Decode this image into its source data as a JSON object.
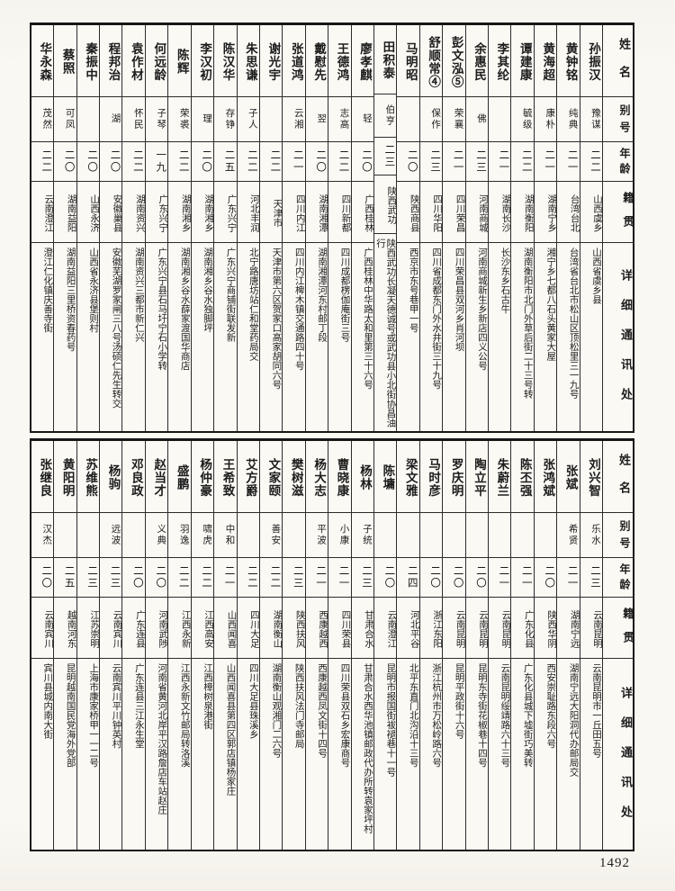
{
  "page": {
    "number": "1492"
  },
  "headers": {
    "name": "姓名",
    "courtesy": "别号",
    "age": "年龄",
    "origin": "籍贯",
    "address": "详细通讯处"
  },
  "tables": [
    {
      "people": [
        {
          "name": "孙振汉",
          "courtesy": "豫谋",
          "age": "二二",
          "origin": "山西虞乡",
          "address": "山西省虞乡县"
        },
        {
          "name": "黄钟铭",
          "courtesy": "纯典",
          "age": "二一",
          "origin": "台湾台北",
          "address": "台湾省台北市松山区顶松里三一九号"
        },
        {
          "name": "黄海超",
          "courtesy": "康朴",
          "age": "二一",
          "origin": "湖南宁乡",
          "address": "湘宁乡七都八石头黄家大屋"
        },
        {
          "name": "谭建康",
          "courtesy": "毓级",
          "age": "二二",
          "origin": "湖南衡阳",
          "address": "湖南衡阳市北门外草后街二十三号转"
        },
        {
          "name": "李其纶",
          "courtesy": "",
          "age": "二一",
          "origin": "湖南长沙",
          "address": "长沙东乡石古牛"
        },
        {
          "name": "余惠民",
          "courtesy": "佛",
          "age": "二三",
          "origin": "河南商城",
          "address": "河南商城新生乡新店四义公号"
        },
        {
          "name": "彭文泓⑤",
          "courtesy": "荣襄",
          "age": "二一",
          "origin": "四川荣昌",
          "address": "四川荣昌县双河乡肖河坝"
        },
        {
          "name": "舒顺常④",
          "courtesy": "保作",
          "age": "二三",
          "origin": "四川华阳",
          "address": "四川省成都东门外水井街三十九号"
        },
        {
          "name": "马明昭",
          "courtesy": "",
          "age": "二〇",
          "origin": "陕西商县",
          "address": "西京市东号巷甲一号"
        },
        {
          "name": "田积泰",
          "courtesy": "伯亨",
          "age": "二三",
          "origin": "陕西武功",
          "address": "陕西武功长凝天德诚号或武功县小北街协昌油行"
        },
        {
          "name": "廖孝麒",
          "courtesy": "轻",
          "age": "二〇",
          "origin": "广西桂林",
          "address": "广西桂林中华路太和里第三十六号"
        },
        {
          "name": "王德鸿",
          "courtesy": "志高",
          "age": "二二",
          "origin": "四川新都",
          "address": "四川成都楞伽庵街三号"
        },
        {
          "name": "戴慰先",
          "courtesy": "翌",
          "age": "二〇",
          "origin": "湖南湘潭",
          "address": "湖南湘潭河东村邮丁段"
        },
        {
          "name": "张道鸿",
          "courtesy": "云湘",
          "age": "二一",
          "origin": "四川内江",
          "address": "四川内江椑木镇交通路四十号"
        },
        {
          "name": "谢光宇",
          "courtesy": "",
          "age": "二二",
          "origin": "天津市",
          "address": "天津市第六区贺家口高家胡同六号"
        },
        {
          "name": "朱思谦",
          "courtesy": "子人",
          "age": "二二",
          "origin": "河北丰润",
          "address": "北宁路唐坊站仁和堂药局交"
        },
        {
          "name": "陈汉华",
          "courtesy": "存铮",
          "age": "二五",
          "origin": "广东兴宁",
          "address": "广东兴宁商铺街联发新"
        },
        {
          "name": "李汉初",
          "courtesy": "理",
          "age": "二〇",
          "origin": "湖南湘乡",
          "address": "湖南湘乡谷水独脚坪"
        },
        {
          "name": "陈辉",
          "courtesy": "荣裘",
          "age": "二二",
          "origin": "湖南湘乡",
          "address": "湖南湘乡谷水薛家渡国华商店"
        },
        {
          "name": "何远龄",
          "courtesy": "子琴",
          "age": "一九",
          "origin": "广东兴宁",
          "address": "广东兴宁县石马圩宁石小学转"
        },
        {
          "name": "袁作材",
          "courtesy": "怀民",
          "age": "二二",
          "origin": "湖南资兴",
          "address": "湖南资兴三都市新仁兴"
        },
        {
          "name": "程邦治",
          "courtesy": "湖",
          "age": "二〇",
          "origin": "安徽巢县",
          "address": "安徽芜湖罗家闸三八号汤硕仁先生转交"
        },
        {
          "name": "秦振中",
          "courtesy": "",
          "age": "二〇",
          "origin": "山西永济",
          "address": "山西省永济县堡则村"
        },
        {
          "name": "蔡照",
          "courtesy": "可凤",
          "age": "二〇",
          "origin": "湖南益阳",
          "address": "湖南益阳三里桥资春药号"
        },
        {
          "name": "华永森",
          "courtesy": "茂然",
          "age": "二二",
          "origin": "云南澄江",
          "address": "澄江仁化镇庆善寺街"
        }
      ]
    },
    {
      "people": [
        {
          "name": "刘兴智",
          "courtesy": "乐水",
          "age": "二三",
          "origin": "云南昆明",
          "address": "云南昆明市一丘田五号"
        },
        {
          "name": "张斌",
          "courtesy": "希贤",
          "age": "二一",
          "origin": "湖南宁远",
          "address": "湖南宁远大阳洞代办邮局交"
        },
        {
          "name": "张鸿斌",
          "courtesy": "",
          "age": "二〇",
          "origin": "陕西华阴",
          "address": "西安崇耻路东段六号"
        },
        {
          "name": "陈丕强",
          "courtesy": "",
          "age": "二一",
          "origin": "广东化县",
          "address": "广东化县城下墟街巧美转"
        },
        {
          "name": "朱蔚兰",
          "courtesy": "",
          "age": "二一",
          "origin": "云南昆明",
          "address": "云南昆明绥靖路六十三号"
        },
        {
          "name": "陶立平",
          "courtesy": "",
          "age": "二〇",
          "origin": "云南昆明",
          "address": "昆明东寺街花椒巷十四号"
        },
        {
          "name": "罗庆明",
          "courtesy": "",
          "age": "二〇",
          "origin": "云南昆明",
          "address": "昆明平政街十六号"
        },
        {
          "name": "马时彦",
          "courtesy": "",
          "age": "二〇",
          "origin": "浙江东阳",
          "address": "浙江杭州市万松岭路六号"
        },
        {
          "name": "梁文雅",
          "courtesy": "",
          "age": "二四",
          "origin": "河北平谷",
          "address": "北平东直门北沟沿十三号"
        },
        {
          "name": "陈墉",
          "courtesy": "",
          "age": "二〇",
          "origin": "云南澄江",
          "address": "昆明市报国街袚褪巷十一号"
        },
        {
          "name": "杨林",
          "courtesy": "子统",
          "age": "二三",
          "origin": "甘肃合水",
          "address": "甘肃合水西华池镇邮政代办所转袁家坪村"
        },
        {
          "name": "曹晓康",
          "courtesy": "小康",
          "age": "二一",
          "origin": "四川荣县",
          "address": "四川荣县双石乡宏康商号"
        },
        {
          "name": "杨大志",
          "courtesy": "平波",
          "age": "二一",
          "origin": "西康越西",
          "address": "西康越西凤文街十四号"
        },
        {
          "name": "樊树滋",
          "courtesy": "",
          "age": "二三",
          "origin": "陕西扶风",
          "address": "陕西扶风法门寺邮局"
        },
        {
          "name": "文家颐",
          "courtesy": "善安",
          "age": "二二",
          "origin": "湖南衡山",
          "address": "湖南衡山观湘门二六号"
        },
        {
          "name": "艾方爵",
          "courtesy": "",
          "age": "二二",
          "origin": "四川大足",
          "address": "四川大足县珠溪乡"
        },
        {
          "name": "王希致",
          "courtesy": "中和",
          "age": "二一",
          "origin": "山西闻喜",
          "address": "山西闻喜县第四区郭店镇杨家庄"
        },
        {
          "name": "杨仲豪",
          "courtesy": "啸虎",
          "age": "二二",
          "origin": "江西高安",
          "address": "江西樟树泉港街"
        },
        {
          "name": "盛鹏",
          "courtesy": "羽逸",
          "age": "二二",
          "origin": "江西永新",
          "address": "江西永新文竹邮局转洛溪"
        },
        {
          "name": "赵当才",
          "courtesy": "义典",
          "age": "二〇",
          "origin": "河南武陟",
          "address": "河南省黄河北岸平汉路詹店车站赵庄"
        },
        {
          "name": "邓良政",
          "courtesy": "",
          "age": "二〇",
          "origin": "广东连县",
          "address": "广东连县三江永生堂"
        },
        {
          "name": "杨驹",
          "courtesy": "远波",
          "age": "二三",
          "origin": "云南宾川",
          "address": "云南宾川平川钟英村"
        },
        {
          "name": "苏维熊",
          "courtesy": "",
          "age": "二三",
          "origin": "江苏崇明",
          "address": "上海市康家桥甲一一二号"
        },
        {
          "name": "黄阳明",
          "courtesy": "",
          "age": "二五",
          "origin": "越南河东",
          "address": "昆明越南国民党海外党部"
        },
        {
          "name": "张继良",
          "courtesy": "汉杰",
          "age": "二〇",
          "origin": "云南宾川",
          "address": "宾川县城内南大街"
        }
      ]
    }
  ]
}
